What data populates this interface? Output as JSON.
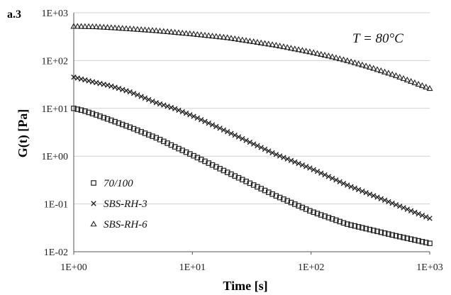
{
  "chart_data": {
    "type": "scatter",
    "panel_label": "a.3",
    "annotation": "T = 80°C",
    "xlabel": "Time [s]",
    "ylabel": "G(t) [Pa]",
    "xscale": "log",
    "yscale": "log",
    "xlim": [
      1,
      1000
    ],
    "ylim": [
      0.01,
      1000
    ],
    "xticks": [
      1,
      10,
      100,
      1000
    ],
    "xtick_labels": [
      "1E+00",
      "1E+01",
      "1E+02",
      "1E+03"
    ],
    "yticks": [
      0.01,
      0.1,
      1,
      10,
      100,
      1000
    ],
    "ytick_labels": [
      "1E-02",
      "1E-01",
      "1E+00",
      "1E+01",
      "1E+02",
      "1E+03"
    ],
    "grid": "horizontal major lines",
    "legend_position": "bottom-left",
    "series": [
      {
        "name": "70/100",
        "marker": "square",
        "x": [
          1,
          1.2,
          1.5,
          2,
          3,
          5,
          7,
          10,
          20,
          50,
          100,
          200,
          500,
          1000
        ],
        "y": [
          10,
          9,
          7.5,
          5.8,
          4,
          2.4,
          1.6,
          1.05,
          0.45,
          0.15,
          0.07,
          0.038,
          0.022,
          0.015
        ]
      },
      {
        "name": "SBS-RH-3",
        "marker": "cross",
        "x": [
          1,
          1.5,
          2,
          3,
          5,
          7,
          10,
          20,
          50,
          100,
          200,
          500,
          1000
        ],
        "y": [
          45,
          35,
          30,
          22,
          13,
          10,
          7,
          3.2,
          1.1,
          0.55,
          0.25,
          0.1,
          0.05
        ]
      },
      {
        "name": "SBS-RH-6",
        "marker": "triangle",
        "x": [
          1,
          1.5,
          2,
          3,
          5,
          10,
          20,
          50,
          100,
          150,
          200,
          300,
          500,
          1000
        ],
        "y": [
          520,
          510,
          490,
          460,
          420,
          360,
          300,
          210,
          150,
          120,
          100,
          75,
          50,
          26
        ]
      }
    ]
  }
}
